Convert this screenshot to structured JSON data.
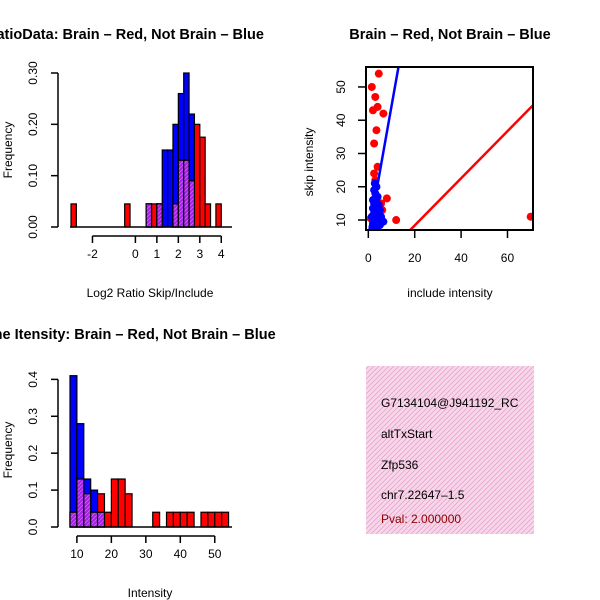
{
  "colors": {
    "red": "#ff0000",
    "blue": "#0000ff",
    "purple": "#a020f0",
    "info_bg": "#f6d6e9",
    "pval": "#8b0000"
  },
  "chart_data": [
    {
      "id": "ratio",
      "type": "histogram",
      "title": "RatioData: Brain – Red, Not Brain – Blue",
      "xlabel": "Log2 Ratio Skip/Include",
      "ylabel": "Frequency",
      "xlim": [
        -3.0,
        4.5
      ],
      "ylim": [
        0,
        0.3
      ],
      "xticks": [
        -2,
        0,
        1,
        2,
        3,
        4
      ],
      "yticks": [
        0.0,
        0.1,
        0.2,
        0.3
      ],
      "ytick_labels": [
        "0.00",
        "0.10",
        "0.20",
        "0.30"
      ],
      "series": [
        {
          "name": "Not Brain",
          "color": "blue",
          "bins": [
            [
              0.5,
              0.75,
              0.045
            ],
            [
              1.0,
              1.25,
              0.045
            ],
            [
              1.25,
              1.5,
              0.15
            ],
            [
              1.5,
              1.75,
              0.15
            ],
            [
              1.75,
              2.0,
              0.2
            ],
            [
              2.0,
              2.25,
              0.26
            ],
            [
              2.25,
              2.5,
              0.3
            ],
            [
              2.5,
              2.75,
              0.22
            ]
          ]
        },
        {
          "name": "Brain",
          "color": "red",
          "bins": [
            [
              -3.0,
              -2.75,
              0.045
            ],
            [
              -0.5,
              -0.25,
              0.045
            ],
            [
              0.5,
              0.75,
              0.045
            ],
            [
              0.75,
              1.0,
              0.045
            ],
            [
              1.0,
              1.25,
              0.045
            ],
            [
              1.75,
              2.0,
              0.045
            ],
            [
              2.0,
              2.25,
              0.13
            ],
            [
              2.25,
              2.5,
              0.13
            ],
            [
              2.5,
              2.75,
              0.09
            ],
            [
              2.75,
              3.0,
              0.2
            ],
            [
              3.0,
              3.25,
              0.175
            ],
            [
              3.25,
              3.5,
              0.045
            ],
            [
              3.75,
              4.0,
              0.045
            ]
          ]
        }
      ]
    },
    {
      "id": "scatter",
      "type": "scatter",
      "title": "Brain – Red, Not Brain – Blue",
      "xlabel": "include intensity",
      "ylabel": "skip intensity",
      "xlim": [
        -1,
        71
      ],
      "ylim": [
        7,
        56
      ],
      "xticks": [
        0,
        20,
        40,
        60
      ],
      "yticks": [
        10,
        20,
        30,
        40,
        50
      ],
      "series": [
        {
          "name": "Brain",
          "color": "red",
          "points": [
            [
              4.5,
              54
            ],
            [
              1.5,
              50
            ],
            [
              3.0,
              47
            ],
            [
              2.0,
              43
            ],
            [
              4.0,
              44
            ],
            [
              6.5,
              42
            ],
            [
              3.5,
              37
            ],
            [
              2.5,
              33
            ],
            [
              4.0,
              26
            ],
            [
              2.5,
              24
            ],
            [
              3.0,
              22
            ],
            [
              8.0,
              16.5
            ],
            [
              5.5,
              15
            ],
            [
              3.5,
              14
            ],
            [
              6.0,
              13
            ],
            [
              12.0,
              10
            ],
            [
              70.0,
              11
            ],
            [
              1.0,
              10.5
            ],
            [
              2.0,
              9
            ]
          ],
          "fit": [
            [
              -1,
              -6.5
            ],
            [
              71,
              44.5
            ]
          ]
        },
        {
          "name": "Not Brain",
          "color": "blue",
          "points": [
            [
              2.8,
              21
            ],
            [
              3.5,
              20
            ],
            [
              2.5,
              19
            ],
            [
              3.0,
              18
            ],
            [
              4.0,
              17
            ],
            [
              2.0,
              16
            ],
            [
              3.5,
              15.5
            ],
            [
              2.5,
              15
            ],
            [
              4.5,
              14.5
            ],
            [
              3.0,
              14
            ],
            [
              2.0,
              13.5
            ],
            [
              3.5,
              13
            ],
            [
              5.0,
              13
            ],
            [
              4.0,
              12.5
            ],
            [
              2.5,
              12
            ],
            [
              3.5,
              11.5
            ],
            [
              1.5,
              11
            ],
            [
              4.0,
              11
            ],
            [
              5.5,
              11
            ],
            [
              3.0,
              10.5
            ],
            [
              2.0,
              10
            ],
            [
              4.5,
              10
            ],
            [
              3.0,
              9.5
            ],
            [
              6.5,
              9.5
            ],
            [
              2.5,
              9
            ],
            [
              3.5,
              8.5
            ],
            [
              5.0,
              8.5
            ],
            [
              1.8,
              8
            ],
            [
              4.0,
              8
            ],
            [
              2.5,
              7.5
            ]
          ],
          "fit": [
            [
              0.5,
              7
            ],
            [
              13,
              56
            ]
          ]
        }
      ]
    },
    {
      "id": "intensity",
      "type": "histogram",
      "title": "Gene Itensity: Brain – Red, Not Brain – Blue",
      "xlabel": "Intensity",
      "ylabel": "Frequency",
      "xlim": [
        8,
        55
      ],
      "ylim": [
        0,
        0.42
      ],
      "xticks": [
        10,
        20,
        30,
        40,
        50
      ],
      "yticks": [
        0.0,
        0.1,
        0.2,
        0.3,
        0.4
      ],
      "ytick_labels": [
        "0.0",
        "0.1",
        "0.2",
        "0.3",
        "0.4"
      ],
      "series": [
        {
          "name": "Not Brain",
          "color": "blue",
          "bins": [
            [
              8,
              10,
              0.41
            ],
            [
              10,
              12,
              0.28
            ],
            [
              12,
              14,
              0.13
            ],
            [
              14,
              16,
              0.1
            ],
            [
              16,
              18,
              0.04
            ]
          ]
        },
        {
          "name": "Brain",
          "color": "red",
          "bins": [
            [
              8,
              10,
              0.04
            ],
            [
              10,
              12,
              0.13
            ],
            [
              12,
              14,
              0.09
            ],
            [
              14,
              16,
              0.04
            ],
            [
              16,
              18,
              0.09
            ],
            [
              18,
              20,
              0.04
            ],
            [
              20,
              22,
              0.13
            ],
            [
              22,
              24,
              0.13
            ],
            [
              24,
              26,
              0.09
            ],
            [
              32,
              34,
              0.04
            ],
            [
              36,
              38,
              0.04
            ],
            [
              38,
              40,
              0.04
            ],
            [
              40,
              42,
              0.04
            ],
            [
              42,
              44,
              0.04
            ],
            [
              46,
              48,
              0.04
            ],
            [
              48,
              50,
              0.04
            ],
            [
              50,
              52,
              0.04
            ],
            [
              52,
              54,
              0.04
            ]
          ]
        }
      ]
    }
  ],
  "info_panel": {
    "probe": "G7134104@J941192_RC",
    "event": "altTxStart",
    "gene": "Zfp536",
    "location": "chr7.22647–1.5",
    "pval": "Pval: 2.000000"
  }
}
